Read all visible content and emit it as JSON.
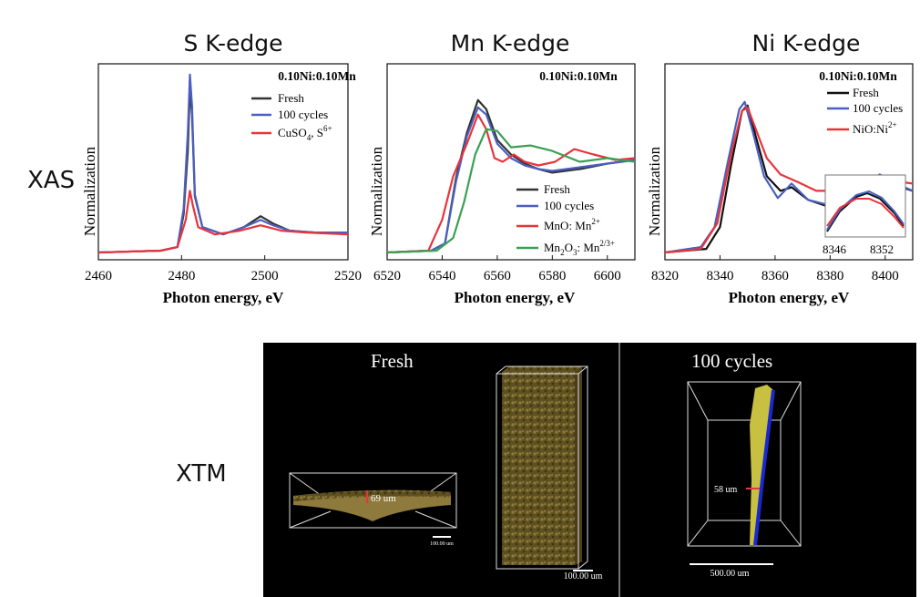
{
  "row_labels": {
    "xas": "XAS",
    "xtm": "XTM"
  },
  "panel_titles": [
    "S K-edge",
    "Mn K-edge",
    "Ni K-edge"
  ],
  "chart_data": [
    {
      "type": "line",
      "title": "S K-edge",
      "xlabel": "Photon energy, eV",
      "ylabel": "Normalization",
      "xlim": [
        2460,
        2520
      ],
      "xticks": [
        "2460",
        "2480",
        "2500",
        "2520"
      ],
      "annotation": "0.10Ni:0.10Mn",
      "legend_position": "top-right",
      "series": [
        {
          "name": "Fresh",
          "color": "#333333",
          "points": [
            [
              2460,
              0.04
            ],
            [
              2475,
              0.05
            ],
            [
              2479,
              0.07
            ],
            [
              2480.5,
              0.25
            ],
            [
              2481.5,
              0.6
            ],
            [
              2482,
              0.95
            ],
            [
              2482.5,
              0.8
            ],
            [
              2483.2,
              0.35
            ],
            [
              2485,
              0.18
            ],
            [
              2490,
              0.14
            ],
            [
              2495,
              0.18
            ],
            [
              2499,
              0.24
            ],
            [
              2502,
              0.2
            ],
            [
              2506,
              0.16
            ],
            [
              2512,
              0.15
            ],
            [
              2520,
              0.15
            ]
          ]
        },
        {
          "name": "100 cycles",
          "color": "#4a5fbf",
          "points": [
            [
              2460,
              0.04
            ],
            [
              2475,
              0.05
            ],
            [
              2479,
              0.07
            ],
            [
              2480.5,
              0.28
            ],
            [
              2481.5,
              0.7
            ],
            [
              2482,
              1.02
            ],
            [
              2482.5,
              0.85
            ],
            [
              2483.2,
              0.36
            ],
            [
              2485,
              0.18
            ],
            [
              2490,
              0.14
            ],
            [
              2495,
              0.18
            ],
            [
              2499,
              0.22
            ],
            [
              2502,
              0.19
            ],
            [
              2506,
              0.16
            ],
            [
              2512,
              0.15
            ],
            [
              2520,
              0.15
            ]
          ]
        },
        {
          "name": "CuSO",
          "color": "#e8343c",
          "points": [
            [
              2460,
              0.04
            ],
            [
              2475,
              0.05
            ],
            [
              2479,
              0.07
            ],
            [
              2481,
              0.22
            ],
            [
              2482,
              0.38
            ],
            [
              2482.7,
              0.3
            ],
            [
              2484,
              0.18
            ],
            [
              2488,
              0.14
            ],
            [
              2494,
              0.16
            ],
            [
              2499,
              0.19
            ],
            [
              2504,
              0.16
            ],
            [
              2510,
              0.15
            ],
            [
              2520,
              0.14
            ]
          ]
        }
      ]
    },
    {
      "type": "line",
      "title": "Mn K-edge",
      "xlabel": "Photon energy, eV",
      "ylabel": "Normalization",
      "xlim": [
        6520,
        6610
      ],
      "xticks": [
        "6520",
        "6540",
        "6560",
        "6580",
        "6600"
      ],
      "annotation": "0.10Ni:0.10Mn",
      "legend_position": "bottom-right",
      "series": [
        {
          "name": "Fresh",
          "color": "#333333",
          "points": [
            [
              6520,
              0.04
            ],
            [
              6536,
              0.05
            ],
            [
              6541,
              0.09
            ],
            [
              6545,
              0.45
            ],
            [
              6549,
              0.7
            ],
            [
              6553,
              0.88
            ],
            [
              6556,
              0.83
            ],
            [
              6560,
              0.66
            ],
            [
              6565,
              0.58
            ],
            [
              6570,
              0.53
            ],
            [
              6575,
              0.5
            ],
            [
              6580,
              0.48
            ],
            [
              6590,
              0.5
            ],
            [
              6600,
              0.53
            ],
            [
              6610,
              0.55
            ]
          ]
        },
        {
          "name": "100 cycles",
          "color": "#4a5fbf",
          "points": [
            [
              6520,
              0.04
            ],
            [
              6536,
              0.05
            ],
            [
              6541,
              0.09
            ],
            [
              6545,
              0.43
            ],
            [
              6549,
              0.68
            ],
            [
              6553,
              0.84
            ],
            [
              6556,
              0.8
            ],
            [
              6560,
              0.64
            ],
            [
              6565,
              0.56
            ],
            [
              6570,
              0.52
            ],
            [
              6575,
              0.5
            ],
            [
              6580,
              0.49
            ],
            [
              6590,
              0.51
            ],
            [
              6600,
              0.53
            ],
            [
              6610,
              0.55
            ]
          ]
        },
        {
          "name": "MnO: Mn",
          "color": "#e8343c",
          "points": [
            [
              6520,
              0.04
            ],
            [
              6535,
              0.05
            ],
            [
              6540,
              0.22
            ],
            [
              6544,
              0.46
            ],
            [
              6549,
              0.64
            ],
            [
              6553,
              0.8
            ],
            [
              6556,
              0.72
            ],
            [
              6559,
              0.56
            ],
            [
              6562,
              0.54
            ],
            [
              6566,
              0.58
            ],
            [
              6570,
              0.54
            ],
            [
              6575,
              0.52
            ],
            [
              6581,
              0.54
            ],
            [
              6588,
              0.61
            ],
            [
              6595,
              0.58
            ],
            [
              6603,
              0.55
            ],
            [
              6610,
              0.56
            ]
          ]
        },
        {
          "name": "Mn",
          "color": "#3aa052",
          "points": [
            [
              6520,
              0.04
            ],
            [
              6538,
              0.05
            ],
            [
              6544,
              0.12
            ],
            [
              6548,
              0.32
            ],
            [
              6552,
              0.58
            ],
            [
              6556,
              0.72
            ],
            [
              6560,
              0.71
            ],
            [
              6565,
              0.62
            ],
            [
              6572,
              0.63
            ],
            [
              6580,
              0.6
            ],
            [
              6590,
              0.54
            ],
            [
              6600,
              0.56
            ],
            [
              6610,
              0.54
            ]
          ]
        }
      ]
    },
    {
      "type": "line",
      "title": "Ni K-edge",
      "xlabel": "Photon energy, eV",
      "ylabel": "Normalization",
      "xlim": [
        8320,
        8410
      ],
      "xticks": [
        "8320",
        "8340",
        "8360",
        "8380",
        "8400"
      ],
      "annotation": "0.10Ni:0.10Mn",
      "legend_position": "top-right",
      "series": [
        {
          "name": "Fresh",
          "color": "#111111",
          "points": [
            [
              8320,
              0.04
            ],
            [
              8335,
              0.06
            ],
            [
              8340,
              0.18
            ],
            [
              8344,
              0.52
            ],
            [
              8348,
              0.82
            ],
            [
              8350,
              0.85
            ],
            [
              8353,
              0.68
            ],
            [
              8357,
              0.46
            ],
            [
              8362,
              0.38
            ],
            [
              8366,
              0.4
            ],
            [
              8372,
              0.33
            ],
            [
              8380,
              0.29
            ],
            [
              8386,
              0.34
            ],
            [
              8393,
              0.42
            ],
            [
              8398,
              0.46
            ],
            [
              8404,
              0.41
            ],
            [
              8410,
              0.38
            ]
          ]
        },
        {
          "name": "100 cycles",
          "color": "#4a5fbf",
          "points": [
            [
              8320,
              0.04
            ],
            [
              8333,
              0.07
            ],
            [
              8338,
              0.18
            ],
            [
              8343,
              0.55
            ],
            [
              8347,
              0.83
            ],
            [
              8349,
              0.87
            ],
            [
              8352,
              0.7
            ],
            [
              8356,
              0.46
            ],
            [
              8361,
              0.34
            ],
            [
              8366,
              0.42
            ],
            [
              8372,
              0.33
            ],
            [
              8380,
              0.3
            ],
            [
              8386,
              0.34
            ],
            [
              8393,
              0.42
            ],
            [
              8398,
              0.47
            ],
            [
              8404,
              0.42
            ],
            [
              8410,
              0.38
            ]
          ]
        },
        {
          "name": "NiO:Ni",
          "color": "#e8343c",
          "points": [
            [
              8320,
              0.04
            ],
            [
              8333,
              0.06
            ],
            [
              8339,
              0.2
            ],
            [
              8344,
              0.58
            ],
            [
              8348,
              0.82
            ],
            [
              8350,
              0.84
            ],
            [
              8353,
              0.72
            ],
            [
              8357,
              0.56
            ],
            [
              8362,
              0.47
            ],
            [
              8368,
              0.43
            ],
            [
              8375,
              0.38
            ],
            [
              8382,
              0.38
            ],
            [
              8390,
              0.41
            ],
            [
              8398,
              0.44
            ],
            [
              8405,
              0.43
            ],
            [
              8410,
              0.42
            ]
          ]
        }
      ],
      "inset": {
        "xticks": [
          "8346",
          "8352"
        ],
        "series_colors": [
          "#111111",
          "#4a5fbf",
          "#e8343c"
        ]
      }
    }
  ],
  "legend_sub": {
    "s6": "4",
    "s6_suffix": ", S",
    "s6_sup": "6+",
    "mno_sup": "2+",
    "mn2o3_sub1": "2",
    "mn2o3_mid": "O",
    "mn2o3_sub2": "3",
    "mn2o3_suffix": ":  Mn",
    "mn2o3_sup": "2/3+",
    "nio_sup": "2+"
  },
  "xtm": {
    "fresh_title": "Fresh",
    "cycled_title": "100 cycles",
    "fresh_thickness": "69 um",
    "cycled_thickness": "58 um",
    "scale_small": "100.00 um",
    "scale_fresh": "100.00 um",
    "scale_cycled": "500.00 um"
  }
}
